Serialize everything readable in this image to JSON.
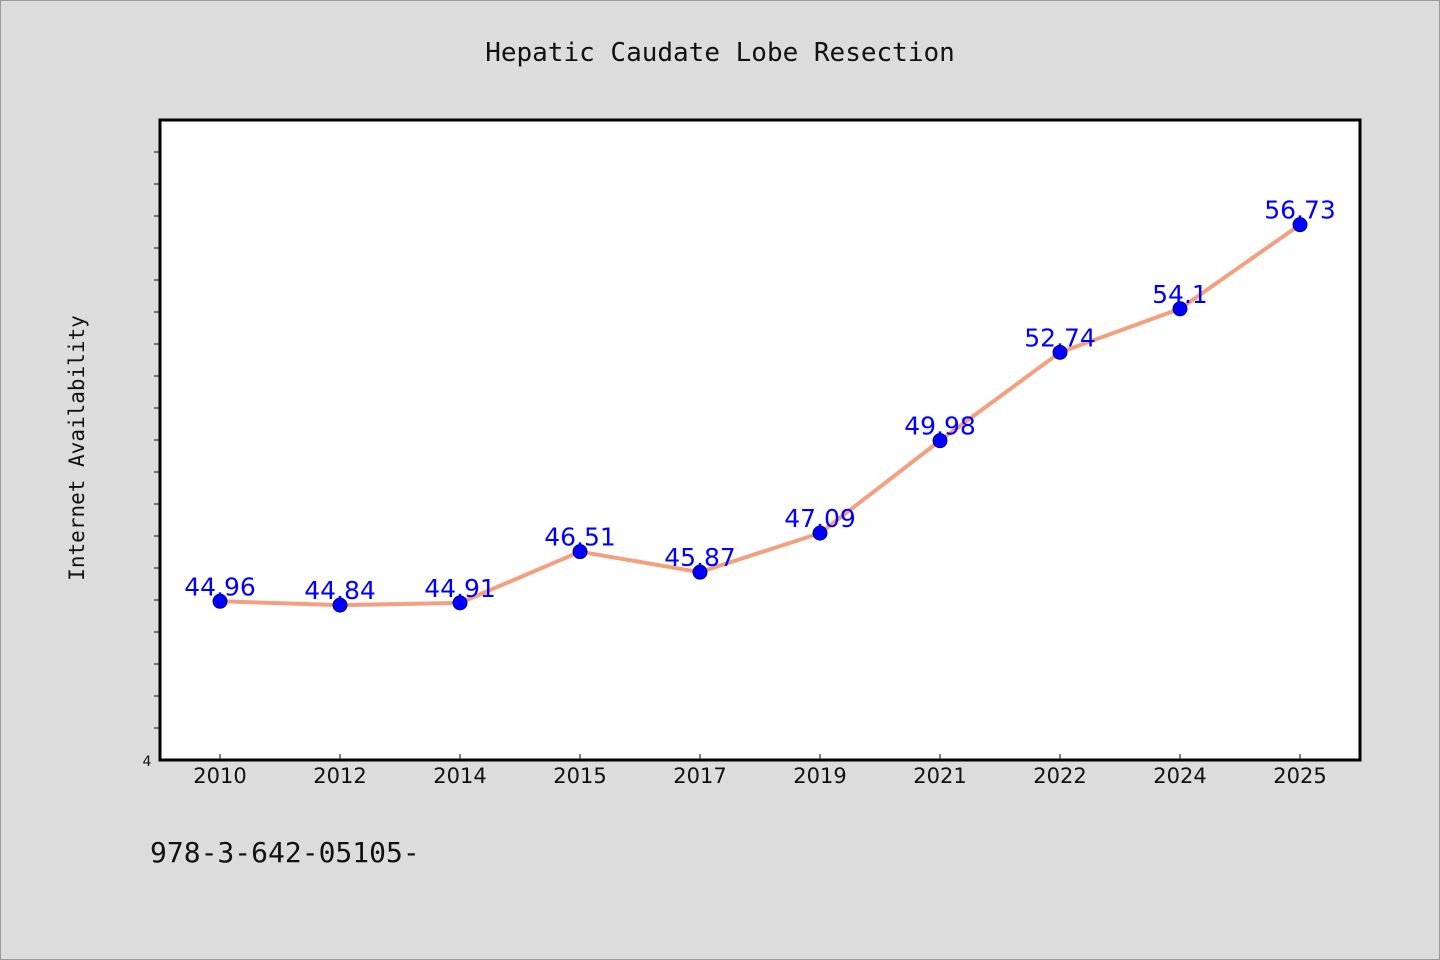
{
  "chart_data": {
    "type": "line",
    "title": "Hepatic Caudate Lobe Resection",
    "xlabel": "",
    "ylabel": "Internet Availability",
    "categories": [
      "2010",
      "2012",
      "2014",
      "2015",
      "2017",
      "2019",
      "2021",
      "2022",
      "2024",
      "2025"
    ],
    "series": [
      {
        "values": [
          44.96,
          44.84,
          44.91,
          46.51,
          45.87,
          47.09,
          49.98,
          52.74,
          54.1,
          56.73
        ],
        "data_labels": [
          "44.96",
          "44.84",
          "44.91",
          "46.51",
          "45.87",
          "47.09",
          "49.98",
          "52.74",
          "54.1",
          "56.73"
        ]
      }
    ],
    "y_tick_label": "4",
    "ylim": [
      40,
      60
    ],
    "grid": false,
    "colors": {
      "line": "#f4a07e",
      "marker": "#0000ff",
      "label": "#0000ff",
      "background": "#dcdcdc",
      "plot_bg": "#ffffff"
    }
  },
  "footer": {
    "text": "978-3-642-05105-"
  }
}
